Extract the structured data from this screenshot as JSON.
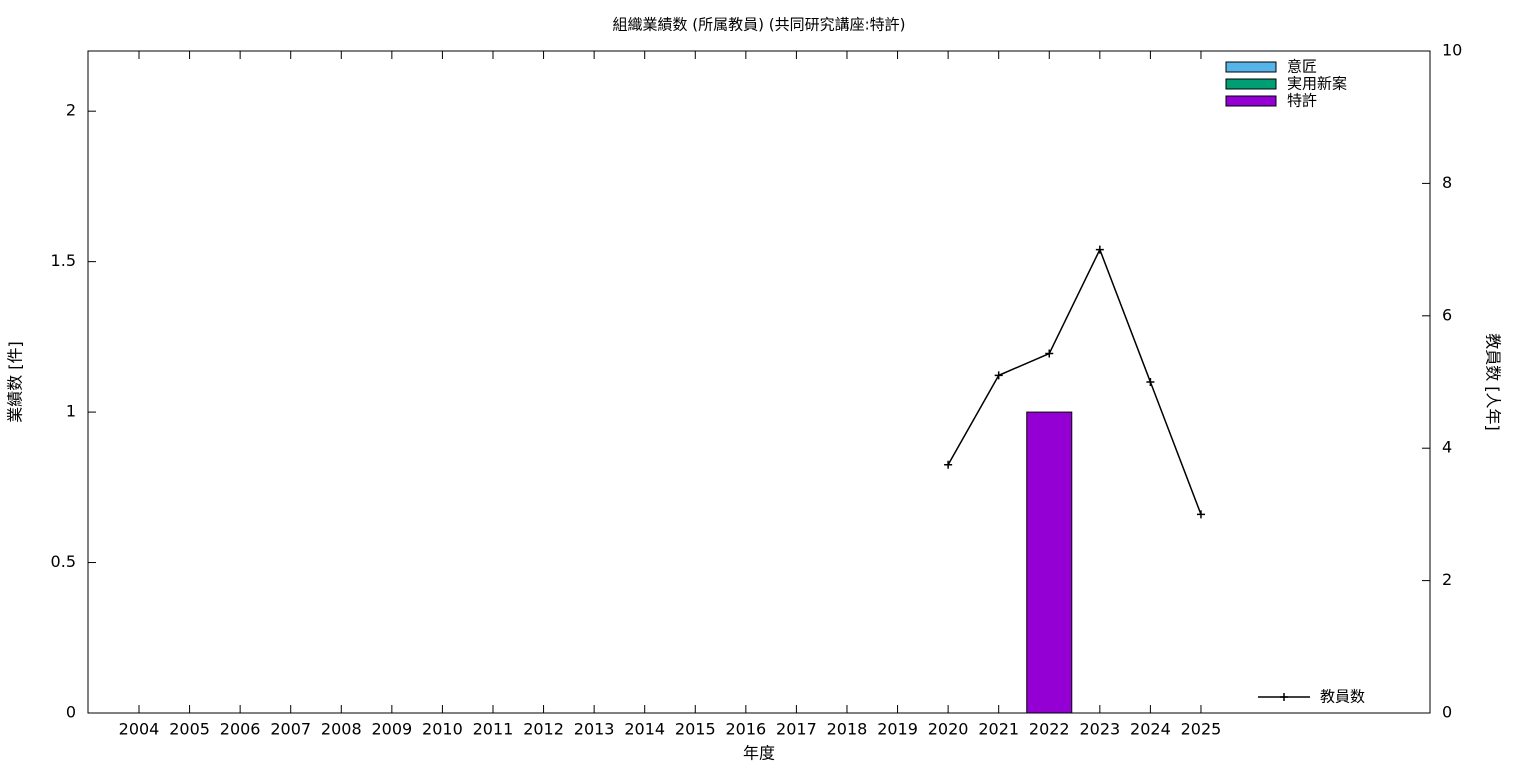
{
  "chart_data": {
    "type": "bar",
    "stacked": true,
    "title": "組織業績数 (所属教員) (共同研究講座:特許)",
    "xlabel": "年度",
    "ylabel": "業績数 [件]",
    "y2label": "教員数 [人年]",
    "categories": [
      "2004",
      "2005",
      "2006",
      "2007",
      "2008",
      "2009",
      "2010",
      "2011",
      "2012",
      "2013",
      "2014",
      "2015",
      "2016",
      "2017",
      "2018",
      "2019",
      "2020",
      "2021",
      "2022",
      "2023",
      "2024",
      "2025"
    ],
    "series": [
      {
        "name": "意匠",
        "type": "bar",
        "color": "#56b4e9",
        "values": [
          0,
          0,
          0,
          0,
          0,
          0,
          0,
          0,
          0,
          0,
          0,
          0,
          0,
          0,
          0,
          0,
          0,
          0,
          0,
          0,
          0,
          0
        ]
      },
      {
        "name": "実用新案",
        "type": "bar",
        "color": "#009e73",
        "values": [
          0,
          0,
          0,
          0,
          0,
          0,
          0,
          0,
          0,
          0,
          0,
          0,
          0,
          0,
          0,
          0,
          0,
          0,
          0,
          0,
          0,
          0
        ]
      },
      {
        "name": "特許",
        "type": "bar",
        "color": "#9400d3",
        "values": [
          0,
          0,
          0,
          0,
          0,
          0,
          0,
          0,
          0,
          0,
          0,
          0,
          0,
          0,
          0,
          0,
          0,
          0,
          1,
          0,
          0,
          0
        ]
      },
      {
        "name": "教員数",
        "type": "line",
        "axis": "y2",
        "color": "#000000",
        "values": [
          null,
          null,
          null,
          null,
          null,
          null,
          null,
          null,
          null,
          null,
          null,
          null,
          null,
          null,
          null,
          null,
          3.75,
          5.1,
          5.43,
          7.0,
          5.0,
          3.0
        ]
      }
    ],
    "ylim": [
      0,
      2.2
    ],
    "yticks": [
      0,
      0.5,
      1,
      1.5,
      2
    ],
    "y2lim": [
      0,
      10
    ],
    "y2ticks": [
      0,
      2,
      4,
      6,
      8,
      10
    ],
    "legend": "top-right"
  }
}
